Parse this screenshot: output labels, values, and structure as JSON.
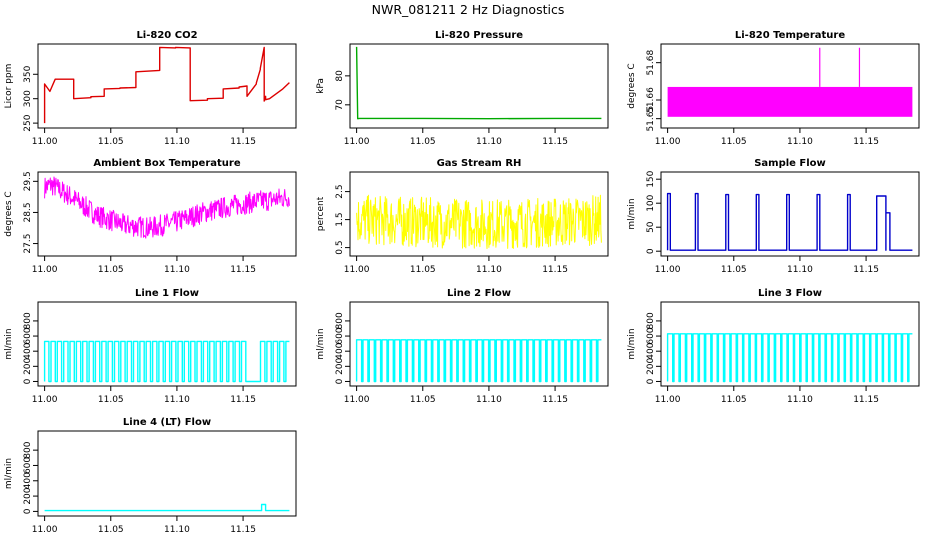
{
  "title": "NWR_081211  2 Hz Diagnostics",
  "chart_data": [
    {
      "type": "line",
      "id": "co2",
      "title": "Li-820 CO2",
      "xlabel": "",
      "ylabel": "Licor ppm",
      "color": "#dd0000",
      "xlim": [
        10.995,
        11.19
      ],
      "ylim": [
        240,
        412
      ],
      "xticks": [
        "11.00",
        "11.05",
        "11.10",
        "11.15"
      ],
      "yticks": [
        "250",
        "300",
        "350"
      ],
      "series": [
        {
          "name": "Li-820 CO2",
          "x": [
            11.0,
            11.0,
            11.004,
            11.008,
            11.022,
            11.022,
            11.035,
            11.035,
            11.045,
            11.045,
            11.057,
            11.057,
            11.069,
            11.069,
            11.087,
            11.087,
            11.087,
            11.099,
            11.099,
            11.11,
            11.11,
            11.123,
            11.123,
            11.135,
            11.135,
            11.147,
            11.147,
            11.153,
            11.153,
            11.16,
            11.16,
            11.163,
            11.163,
            11.166,
            11.166,
            11.167,
            11.167,
            11.17,
            11.18,
            11.185
          ],
          "y": [
            250,
            330,
            315,
            340,
            340,
            300,
            302,
            304,
            305,
            320,
            321,
            322,
            323,
            355,
            358,
            358,
            405,
            404,
            405,
            404,
            296,
            297,
            300,
            301,
            320,
            322,
            324,
            326,
            305,
            330,
            332,
            360,
            362,
            405,
            295,
            305,
            298,
            300,
            320,
            333
          ]
        }
      ]
    },
    {
      "type": "line",
      "id": "pressure",
      "title": "Li-820 Pressure",
      "xlabel": "",
      "ylabel": "kPa",
      "color": "#00aa00",
      "xlim": [
        10.995,
        11.19
      ],
      "ylim": [
        62,
        91
      ],
      "xticks": [
        "11.00",
        "11.05",
        "11.10",
        "11.15"
      ],
      "yticks": [
        "70",
        "80"
      ],
      "series": [
        {
          "name": "Li-820 Pressure",
          "x": [
            11.0,
            11.0008,
            11.002,
            11.05,
            11.1,
            11.15,
            11.185
          ],
          "y": [
            90,
            65.2,
            65.3,
            65.3,
            65.2,
            65.3,
            65.3
          ]
        }
      ]
    },
    {
      "type": "area",
      "id": "li820temp",
      "title": "Li-820 Temperature",
      "xlabel": "",
      "ylabel": "degrees C",
      "color": "#ff00ff",
      "xlim": [
        10.995,
        11.19
      ],
      "ylim": [
        51.645,
        51.69
      ],
      "xticks": [
        "11.00",
        "11.05",
        "11.10",
        "11.15"
      ],
      "yticks": [
        "51.65",
        "51.66",
        "51.68"
      ],
      "series": [
        {
          "name": "Li-820 Temperature",
          "band": [
            51.651,
            51.667
          ],
          "x_range": [
            11.0,
            11.185
          ],
          "spikes": [
            11.115,
            11.145
          ],
          "spike_top": 51.688
        }
      ]
    },
    {
      "type": "line",
      "id": "ambtemp",
      "title": "Ambient Box Temperature",
      "xlabel": "",
      "ylabel": "degrees C",
      "color": "#ff00ff",
      "xlim": [
        10.995,
        11.19
      ],
      "ylim": [
        27.1,
        29.8
      ],
      "xticks": [
        "11.00",
        "11.05",
        "11.10",
        "11.15"
      ],
      "yticks": [
        "27.5",
        "28.5",
        "29.5"
      ],
      "series": [
        {
          "name": "Ambient Box Temperature",
          "x": [
            11.0,
            11.005,
            11.02,
            11.04,
            11.06,
            11.08,
            11.1,
            11.12,
            11.14,
            11.16,
            11.17,
            11.185
          ],
          "y": [
            29.3,
            29.4,
            29.0,
            28.4,
            28.1,
            28.0,
            28.2,
            28.5,
            28.7,
            28.85,
            28.9,
            29.0
          ],
          "noise": 0.35
        }
      ]
    },
    {
      "type": "line",
      "id": "rh",
      "title": "Gas Stream RH",
      "xlabel": "",
      "ylabel": "percent",
      "color": "#ffff00",
      "xlim": [
        10.995,
        11.19
      ],
      "ylim": [
        0.2,
        3.2
      ],
      "xticks": [
        "11.00",
        "11.05",
        "11.10",
        "11.15"
      ],
      "yticks": [
        "0.5",
        "1.5",
        "2.5"
      ],
      "series": [
        {
          "name": "Gas Stream RH",
          "x": [
            11.0,
            11.05,
            11.1,
            11.15,
            11.185
          ],
          "y": [
            1.5,
            1.4,
            1.35,
            1.4,
            1.5
          ],
          "noise": 0.9
        }
      ]
    },
    {
      "type": "line",
      "id": "sampleflow",
      "title": "Sample Flow",
      "xlabel": "",
      "ylabel": "ml/min",
      "color": "#0000cc",
      "xlim": [
        10.995,
        11.19
      ],
      "ylim": [
        -10,
        165
      ],
      "xticks": [
        "11.00",
        "11.05",
        "11.10",
        "11.15"
      ],
      "yticks": [
        "0",
        "50",
        "100",
        "150"
      ],
      "series": [
        {
          "name": "Sample Flow",
          "baseline": 2,
          "pulses": [
            [
              11.0,
              11.002,
              120
            ],
            [
              11.021,
              11.023,
              120
            ],
            [
              11.044,
              11.046,
              118
            ],
            [
              11.067,
              11.069,
              118
            ],
            [
              11.09,
              11.092,
              118
            ],
            [
              11.113,
              11.115,
              118
            ],
            [
              11.136,
              11.138,
              118
            ],
            [
              11.158,
              11.165,
              115
            ],
            [
              11.165,
              11.168,
              80
            ]
          ]
        }
      ]
    },
    {
      "type": "line",
      "id": "line1",
      "title": "Line 1 Flow",
      "xlabel": "",
      "ylabel": "ml/min",
      "color": "#00ffff",
      "xlim": [
        10.995,
        11.19
      ],
      "ylim": [
        -60,
        1050
      ],
      "xticks": [
        "11.00",
        "11.05",
        "11.10",
        "11.15"
      ],
      "yticks": [
        "0",
        "200",
        "400",
        "600",
        "800"
      ],
      "series": [
        {
          "name": "Line 1 Flow",
          "high": 530,
          "low": 0,
          "period": 0.0048,
          "duty": 0.68,
          "x_range": [
            11.0,
            11.185
          ],
          "gaps": [
            [
              11.151,
              11.163
            ]
          ]
        }
      ]
    },
    {
      "type": "line",
      "id": "line2",
      "title": "Line 2 Flow",
      "xlabel": "",
      "ylabel": "ml/min",
      "color": "#00ffff",
      "xlim": [
        10.995,
        11.19
      ],
      "ylim": [
        -60,
        1050
      ],
      "xticks": [
        "11.00",
        "11.05",
        "11.10",
        "11.15"
      ],
      "yticks": [
        "0",
        "200",
        "400",
        "600",
        "800"
      ],
      "series": [
        {
          "name": "Line 2 Flow",
          "high": 550,
          "low": 0,
          "period": 0.0048,
          "duty": 0.78,
          "x_range": [
            11.0,
            11.185
          ],
          "gaps": []
        }
      ]
    },
    {
      "type": "line",
      "id": "line3",
      "title": "Line 3 Flow",
      "xlabel": "",
      "ylabel": "ml/min",
      "color": "#00ffff",
      "xlim": [
        10.995,
        11.19
      ],
      "ylim": [
        -60,
        1050
      ],
      "xticks": [
        "11.00",
        "11.05",
        "11.10",
        "11.15"
      ],
      "yticks": [
        "0",
        "200",
        "400",
        "600",
        "800"
      ],
      "series": [
        {
          "name": "Line 3 Flow",
          "high": 630,
          "low": 0,
          "period": 0.0048,
          "duty": 0.8,
          "x_range": [
            11.0,
            11.185
          ],
          "gaps": []
        }
      ]
    },
    {
      "type": "line",
      "id": "line4",
      "title": "Line 4 (LT) Flow",
      "xlabel": "",
      "ylabel": "ml/min",
      "color": "#00ffff",
      "xlim": [
        10.995,
        11.19
      ],
      "ylim": [
        -60,
        1050
      ],
      "xticks": [
        "11.00",
        "11.05",
        "11.10",
        "11.15"
      ],
      "yticks": [
        "0",
        "200",
        "400",
        "600",
        "800"
      ],
      "series": [
        {
          "name": "Line 4 (LT) Flow",
          "baseline": 10,
          "x_range": [
            11.0,
            11.185
          ],
          "pulses": [
            [
              11.164,
              11.167,
              90
            ]
          ]
        }
      ]
    }
  ]
}
